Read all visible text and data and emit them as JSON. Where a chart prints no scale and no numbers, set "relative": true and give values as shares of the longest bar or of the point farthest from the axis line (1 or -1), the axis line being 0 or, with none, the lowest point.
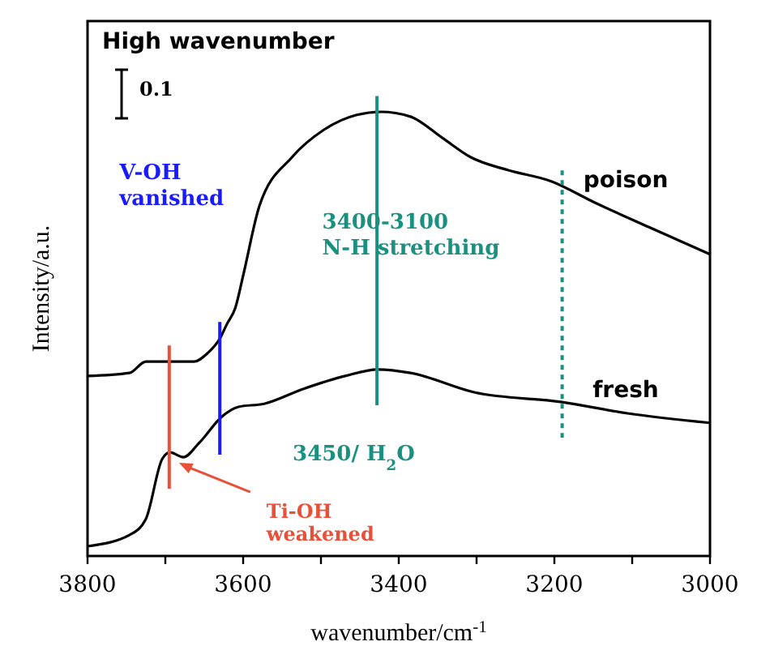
{
  "chart_data": {
    "type": "line",
    "relative": true,
    "title": "High wavenumber",
    "xlabel": "wavenumber/cm$^{-1}$",
    "ylabel": "Intensity/a.u.",
    "xlim": [
      3800,
      3000
    ],
    "xticks": [
      3800,
      {
        "value": 3700,
        "label": null
      },
      3600,
      {
        "value": 3500,
        "label": null
      },
      3400,
      {
        "value": 3300,
        "label": null
      },
      3200,
      {
        "value": 3100,
        "label": null
      },
      3000
    ],
    "legend": false,
    "tick_labels": "x",
    "series": [
      {
        "name": "poison",
        "color": "#000000",
        "x": [
          3800,
          3746,
          3725,
          3663,
          3646,
          3629,
          3621,
          3610,
          3600,
          3579,
          3537,
          3496,
          3454,
          3423,
          3385,
          3344,
          3308,
          3260,
          3204,
          3148,
          3079,
          3000
        ],
        "values": [
          0.392,
          0.399,
          0.425,
          0.425,
          0.444,
          0.481,
          0.511,
          0.549,
          0.623,
          0.784,
          0.896,
          0.959,
          0.993,
          1.0,
          0.989,
          0.94,
          0.896,
          0.866,
          0.84,
          0.791,
          0.735,
          0.672
        ]
      },
      {
        "name": "fresh",
        "color": "#000000",
        "x": [
          3800,
          3746,
          3725,
          3704,
          3694,
          3677,
          3656,
          3627,
          3606,
          3573,
          3523,
          3469,
          3427,
          3385,
          3302,
          3190,
          3106,
          3000
        ],
        "values": [
          0.0,
          0.026,
          0.063,
          0.201,
          0.216,
          0.205,
          0.239,
          0.299,
          0.321,
          0.328,
          0.362,
          0.392,
          0.407,
          0.399,
          0.354,
          0.332,
          0.306,
          0.284
        ]
      }
    ],
    "ref_lines": [
      {
        "axis": "x",
        "value": 3695,
        "label": "Ti-OH\nweakened",
        "color": "#e8503a"
      },
      {
        "axis": "x",
        "value": 3630,
        "label": "V-OH\nvanished",
        "color": "#1a1aff"
      },
      {
        "axis": "x",
        "value": 3428,
        "label": "3450/ H$_{2}$O",
        "color": "#1a9080"
      },
      {
        "axis": "x",
        "value": 3190,
        "label": "3400-3100\nN-H stretching",
        "color": "#1a9080",
        "line_style": "dotted"
      }
    ],
    "annotations": [
      "0.1"
    ]
  }
}
